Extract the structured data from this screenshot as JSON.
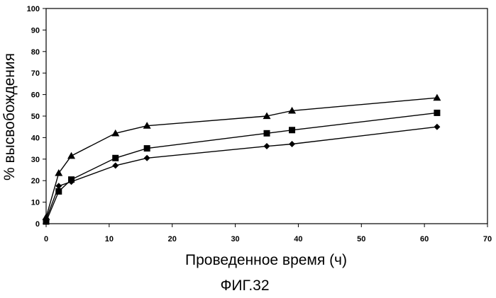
{
  "chart_data": {
    "type": "line",
    "xlabel": "Проведенное время (ч)",
    "ylabel": "% высвобождения",
    "xlim": [
      0,
      70
    ],
    "ylim": [
      0,
      100
    ],
    "x_ticks": [
      "0",
      "10",
      "20",
      "30",
      "40",
      "50",
      "60",
      "70"
    ],
    "y_ticks": [
      "0",
      "10",
      "20",
      "30",
      "40",
      "50",
      "60",
      "70",
      "80",
      "90",
      "100"
    ],
    "grid": false,
    "legend": "none",
    "caption": "ФИГ.32",
    "series": [
      {
        "marker": "triangle",
        "color": "#000000",
        "x": [
          0,
          2,
          4,
          11,
          16,
          35,
          39,
          62
        ],
        "y": [
          3,
          23.5,
          31.5,
          42,
          45.5,
          50,
          52.5,
          58.5
        ]
      },
      {
        "marker": "square",
        "color": "#000000",
        "x": [
          0,
          2,
          4,
          11,
          16,
          35,
          39,
          62
        ],
        "y": [
          1,
          15,
          20.5,
          30.5,
          35,
          42,
          43.5,
          51.5
        ]
      },
      {
        "marker": "diamond",
        "color": "#000000",
        "x": [
          0,
          2,
          4,
          11,
          16,
          35,
          39,
          62
        ],
        "y": [
          2,
          17.5,
          19.5,
          27,
          30.5,
          36,
          37,
          45
        ]
      }
    ]
  }
}
